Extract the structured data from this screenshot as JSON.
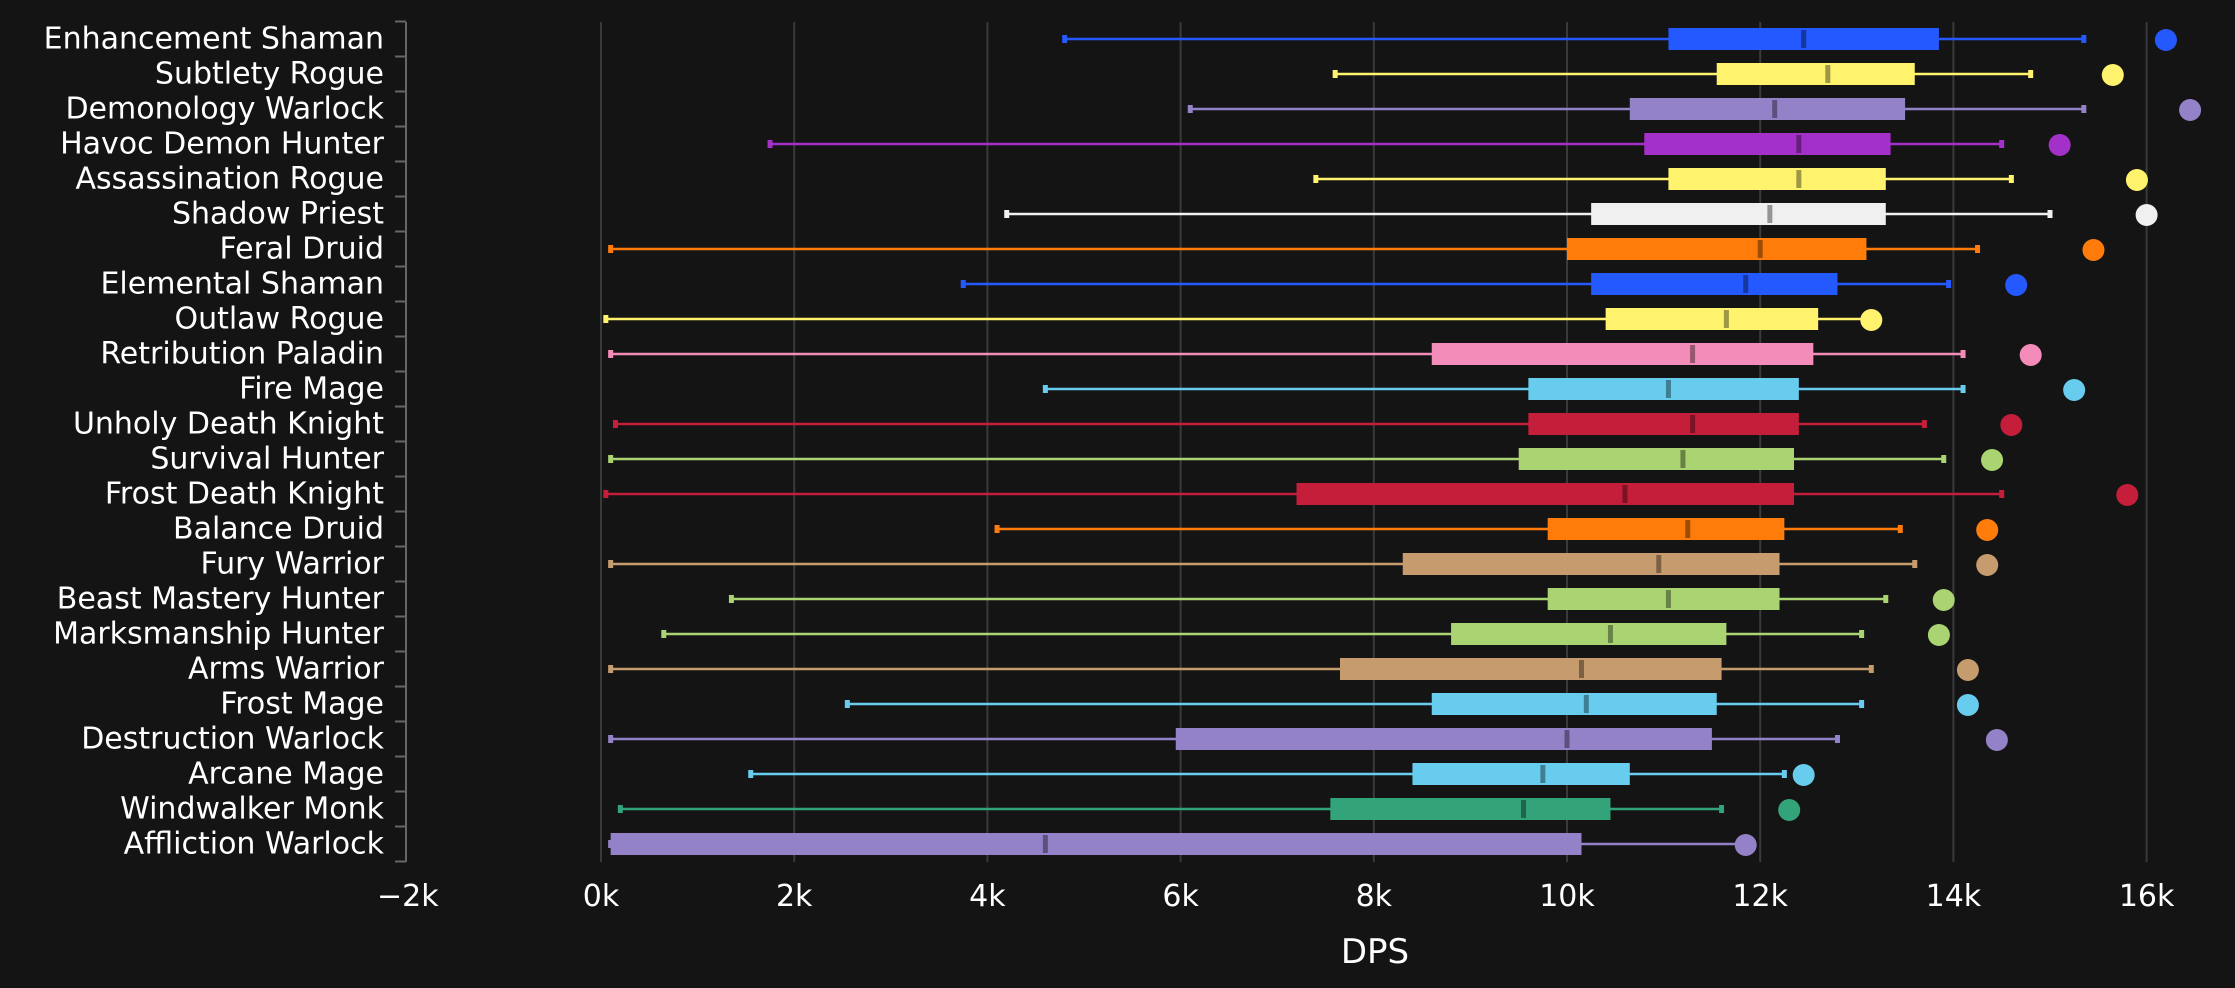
{
  "chart_data": {
    "type": "box",
    "xlabel": "DPS",
    "xlim": [
      -2000,
      16500
    ],
    "x_ticks": [
      -2000,
      0,
      2000,
      4000,
      6000,
      8000,
      10000,
      12000,
      14000,
      16000
    ],
    "x_tick_labels": [
      "−2k",
      "0k",
      "2k",
      "4k",
      "6k",
      "8k",
      "10k",
      "12k",
      "14k",
      "16k"
    ],
    "grid": "vertical",
    "series": [
      {
        "name": "Enhancement Shaman",
        "color": "#2459ff",
        "min": 4800,
        "q1": 11050,
        "median": 12450,
        "q3": 13850,
        "max": 15350,
        "outlier": 16200
      },
      {
        "name": "Subtlety Rogue",
        "color": "#fff36e",
        "min": 7600,
        "q1": 11550,
        "median": 12700,
        "q3": 13600,
        "max": 14800,
        "outlier": 15650
      },
      {
        "name": "Demonology Warlock",
        "color": "#9482c9",
        "min": 6100,
        "q1": 10650,
        "median": 12150,
        "q3": 13500,
        "max": 15350,
        "outlier": 16450
      },
      {
        "name": "Havoc Demon Hunter",
        "color": "#a330c9",
        "min": 1750,
        "q1": 10800,
        "median": 12400,
        "q3": 13350,
        "max": 14500,
        "outlier": 15100
      },
      {
        "name": "Assassination Rogue",
        "color": "#fff36e",
        "min": 7400,
        "q1": 11050,
        "median": 12400,
        "q3": 13300,
        "max": 14600,
        "outlier": 15900
      },
      {
        "name": "Shadow Priest",
        "color": "#f0f0f0",
        "min": 4200,
        "q1": 10250,
        "median": 12100,
        "q3": 13300,
        "max": 15000,
        "outlier": 16000
      },
      {
        "name": "Feral Druid",
        "color": "#ff7c0a",
        "min": 100,
        "q1": 10000,
        "median": 12000,
        "q3": 13100,
        "max": 14250,
        "outlier": 15450
      },
      {
        "name": "Elemental Shaman",
        "color": "#2459ff",
        "min": 3750,
        "q1": 10250,
        "median": 11850,
        "q3": 12800,
        "max": 13950,
        "outlier": 14650
      },
      {
        "name": "Outlaw Rogue",
        "color": "#fff36e",
        "min": 50,
        "q1": 10400,
        "median": 11650,
        "q3": 12600,
        "max": 13100,
        "outlier": 13150
      },
      {
        "name": "Retribution Paladin",
        "color": "#f48cba",
        "min": 100,
        "q1": 8600,
        "median": 11300,
        "q3": 12550,
        "max": 14100,
        "outlier": 14800
      },
      {
        "name": "Fire Mage",
        "color": "#68ccef",
        "min": 4600,
        "q1": 9600,
        "median": 11050,
        "q3": 12400,
        "max": 14100,
        "outlier": 15250
      },
      {
        "name": "Unholy Death Knight",
        "color": "#c41e3a",
        "min": 150,
        "q1": 9600,
        "median": 11300,
        "q3": 12400,
        "max": 13700,
        "outlier": 14600
      },
      {
        "name": "Survival Hunter",
        "color": "#aad372",
        "min": 100,
        "q1": 9500,
        "median": 11200,
        "q3": 12350,
        "max": 13900,
        "outlier": 14400
      },
      {
        "name": "Frost Death Knight",
        "color": "#c41e3a",
        "min": 50,
        "q1": 7200,
        "median": 10600,
        "q3": 12350,
        "max": 14500,
        "outlier": 15800
      },
      {
        "name": "Balance Druid",
        "color": "#ff7c0a",
        "min": 4100,
        "q1": 9800,
        "median": 11250,
        "q3": 12250,
        "max": 13450,
        "outlier": 14350
      },
      {
        "name": "Fury Warrior",
        "color": "#c69b6d",
        "min": 100,
        "q1": 8300,
        "median": 10950,
        "q3": 12200,
        "max": 13600,
        "outlier": 14350
      },
      {
        "name": "Beast Mastery Hunter",
        "color": "#aad372",
        "min": 1350,
        "q1": 9800,
        "median": 11050,
        "q3": 12200,
        "max": 13300,
        "outlier": 13900
      },
      {
        "name": "Marksmanship Hunter",
        "color": "#aad372",
        "min": 650,
        "q1": 8800,
        "median": 10450,
        "q3": 11650,
        "max": 13050,
        "outlier": 13850
      },
      {
        "name": "Arms Warrior",
        "color": "#c69b6d",
        "min": 100,
        "q1": 7650,
        "median": 10150,
        "q3": 11600,
        "max": 13150,
        "outlier": 14150
      },
      {
        "name": "Frost Mage",
        "color": "#68ccef",
        "min": 2550,
        "q1": 8600,
        "median": 10200,
        "q3": 11550,
        "max": 13050,
        "outlier": 14150
      },
      {
        "name": "Destruction Warlock",
        "color": "#9482c9",
        "min": 100,
        "q1": 5950,
        "median": 10000,
        "q3": 11500,
        "max": 12800,
        "outlier": 14450
      },
      {
        "name": "Arcane Mage",
        "color": "#68ccef",
        "min": 1550,
        "q1": 8400,
        "median": 9750,
        "q3": 10650,
        "max": 12250,
        "outlier": 12450
      },
      {
        "name": "Windwalker Monk",
        "color": "#33a37a",
        "min": 200,
        "q1": 7550,
        "median": 9550,
        "q3": 10450,
        "max": 11600,
        "outlier": 12300
      },
      {
        "name": "Affliction Warlock",
        "color": "#9482c9",
        "min": 100,
        "q1": 100,
        "median": 4600,
        "q3": 10150,
        "max": 11850,
        "outlier": 11850
      }
    ]
  }
}
